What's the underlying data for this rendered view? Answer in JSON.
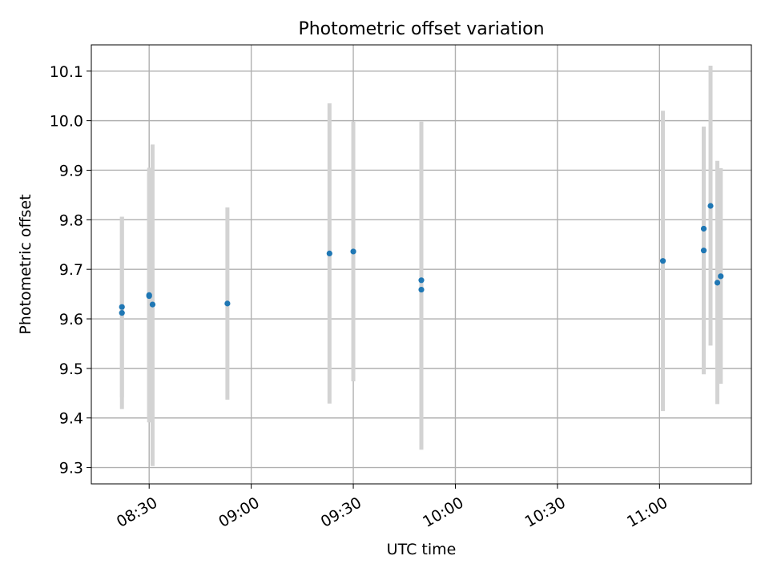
{
  "chart_data": {
    "type": "scatter",
    "title": "Photometric offset variation",
    "xlabel": "UTC time",
    "ylabel": "Photometric offset",
    "x_axis_kind": "time",
    "xlim": [
      "08:13",
      "11:27"
    ],
    "ylim": [
      9.267,
      10.153
    ],
    "xticks": [
      "08:30",
      "09:00",
      "09:30",
      "10:00",
      "10:30",
      "11:00"
    ],
    "yticks": [
      "9.3",
      "9.4",
      "9.5",
      "9.6",
      "9.7",
      "9.8",
      "9.9",
      "10.0",
      "10.1"
    ],
    "grid": true,
    "colors": {
      "point": "#1f77b4",
      "errorbar": "#d3d3d3",
      "grid": "#b0b0b0"
    },
    "points": [
      {
        "x": "08:22",
        "y": 9.624,
        "ylow": 9.442,
        "yhigh": 9.806
      },
      {
        "x": "08:22",
        "y": 9.612,
        "ylow": 9.418,
        "yhigh": 9.806
      },
      {
        "x": "08:30",
        "y": 9.648,
        "ylow": 9.391,
        "yhigh": 9.905
      },
      {
        "x": "08:30",
        "y": 9.646,
        "ylow": 9.398,
        "yhigh": 9.894
      },
      {
        "x": "08:31",
        "y": 9.629,
        "ylow": 9.303,
        "yhigh": 9.952
      },
      {
        "x": "08:53",
        "y": 9.631,
        "ylow": 9.437,
        "yhigh": 9.825
      },
      {
        "x": "09:23",
        "y": 9.732,
        "ylow": 9.429,
        "yhigh": 10.035
      },
      {
        "x": "09:30",
        "y": 9.736,
        "ylow": 9.474,
        "yhigh": 9.998
      },
      {
        "x": "09:50",
        "y": 9.659,
        "ylow": 9.336,
        "yhigh": 9.982
      },
      {
        "x": "09:50",
        "y": 9.678,
        "ylow": 9.358,
        "yhigh": 9.998
      },
      {
        "x": "11:01",
        "y": 9.717,
        "ylow": 9.414,
        "yhigh": 10.02
      },
      {
        "x": "11:13",
        "y": 9.738,
        "ylow": 9.488,
        "yhigh": 9.988
      },
      {
        "x": "11:13",
        "y": 9.782,
        "ylow": 9.578,
        "yhigh": 9.986
      },
      {
        "x": "11:15",
        "y": 9.828,
        "ylow": 9.546,
        "yhigh": 10.111
      },
      {
        "x": "11:17",
        "y": 9.673,
        "ylow": 9.428,
        "yhigh": 9.919
      },
      {
        "x": "11:18",
        "y": 9.686,
        "ylow": 9.469,
        "yhigh": 9.904
      }
    ]
  }
}
